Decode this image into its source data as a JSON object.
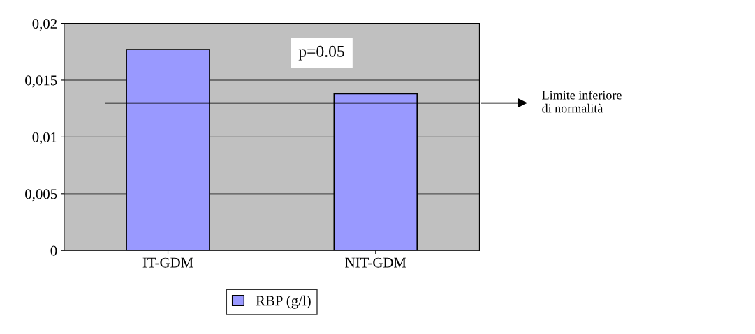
{
  "chart_data": {
    "type": "bar",
    "categories": [
      "IT-GDM",
      "NIT-GDM"
    ],
    "series": [
      {
        "name": "RBP (g/l)",
        "color": "#9999ff",
        "values": [
          0.0177,
          0.0138
        ]
      }
    ],
    "ylim": [
      0,
      0.02
    ],
    "yticks": [
      0,
      {
        "value": 0.005,
        "label": "0,005"
      },
      {
        "value": 0.01,
        "label": "0,01"
      },
      {
        "value": 0.015,
        "label": "0,015"
      },
      {
        "value": 0.02,
        "label": "0,02"
      }
    ],
    "grid": "y",
    "legend": "bottom",
    "ref_lines": [
      {
        "axis": "y",
        "value": 0.013,
        "label": "Limite inferiore\ndi normalità",
        "color": "#000000"
      }
    ],
    "annotations": [
      "p=0.05"
    ]
  }
}
